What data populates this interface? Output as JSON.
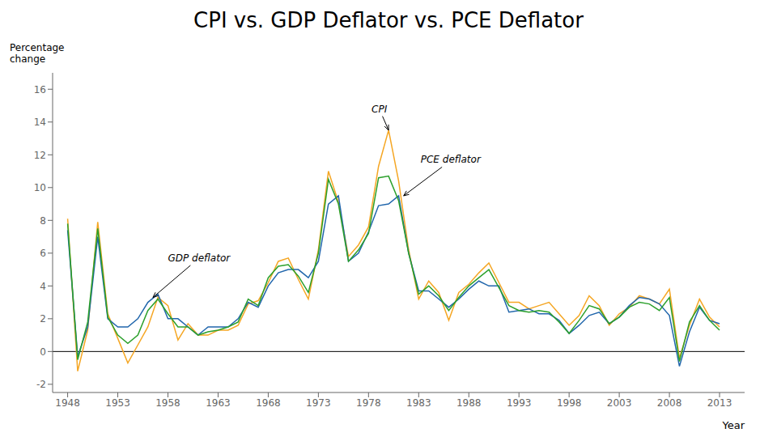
{
  "chart_data": {
    "type": "line",
    "title": "CPI vs. GDP Deflator vs. PCE Deflator",
    "ylabel": "Percentage\nchange",
    "xlabel": "Year",
    "xlim": [
      1946.5,
      2015.5
    ],
    "xticks": [
      1948,
      1953,
      1958,
      1963,
      1968,
      1973,
      1978,
      1983,
      1988,
      1993,
      1998,
      2003,
      2008,
      2013
    ],
    "ylim": [
      -2.5,
      17
    ],
    "yticks": [
      -2,
      0,
      2,
      4,
      6,
      8,
      10,
      12,
      14,
      16
    ],
    "grid": false,
    "hline": 0,
    "x": [
      1948,
      1949,
      1950,
      1951,
      1952,
      1953,
      1954,
      1955,
      1956,
      1957,
      1958,
      1959,
      1960,
      1961,
      1962,
      1963,
      1964,
      1965,
      1966,
      1967,
      1968,
      1969,
      1970,
      1971,
      1972,
      1973,
      1974,
      1975,
      1976,
      1977,
      1978,
      1979,
      1980,
      1981,
      1982,
      1983,
      1984,
      1985,
      1986,
      1987,
      1988,
      1989,
      1990,
      1991,
      1992,
      1993,
      1994,
      1995,
      1996,
      1997,
      1998,
      1999,
      2000,
      2001,
      2002,
      2003,
      2004,
      2005,
      2006,
      2007,
      2008,
      2009,
      2010,
      2011,
      2012,
      2013
    ],
    "series": [
      {
        "name": "CPI",
        "color": "#f5a623",
        "values": [
          8.1,
          -1.2,
          1.3,
          7.9,
          2.3,
          0.8,
          -0.7,
          0.4,
          1.5,
          3.3,
          2.8,
          0.7,
          1.7,
          1.0,
          1.0,
          1.3,
          1.3,
          1.6,
          2.9,
          3.1,
          4.2,
          5.5,
          5.7,
          4.4,
          3.2,
          6.2,
          11.0,
          9.1,
          5.8,
          6.5,
          7.6,
          11.3,
          13.5,
          10.4,
          6.2,
          3.2,
          4.3,
          3.6,
          1.9,
          3.6,
          4.1,
          4.8,
          5.4,
          4.2,
          3.0,
          3.0,
          2.6,
          2.8,
          3.0,
          2.3,
          1.6,
          2.2,
          3.4,
          2.8,
          1.6,
          2.3,
          2.7,
          3.4,
          3.2,
          2.9,
          3.8,
          -0.4,
          1.6,
          3.2,
          2.1,
          1.5
        ]
      },
      {
        "name": "GDP deflator",
        "color": "#2166ac",
        "values": [
          7.4,
          -0.3,
          1.5,
          7.0,
          2.0,
          1.5,
          1.5,
          2.0,
          3.0,
          3.5,
          2.0,
          2.0,
          1.5,
          1.0,
          1.5,
          1.5,
          1.5,
          2.0,
          3.0,
          2.7,
          4.0,
          4.8,
          5.0,
          5.0,
          4.5,
          5.5,
          9.0,
          9.5,
          5.5,
          6.0,
          7.3,
          8.9,
          9.0,
          9.5,
          6.0,
          3.7,
          3.7,
          3.2,
          2.7,
          3.2,
          3.8,
          4.3,
          4.0,
          4.0,
          2.4,
          2.5,
          2.6,
          2.3,
          2.3,
          1.9,
          1.1,
          1.6,
          2.2,
          2.4,
          1.7,
          2.1,
          2.8,
          3.3,
          3.2,
          2.9,
          2.2,
          -0.9,
          1.2,
          2.7,
          1.9,
          1.7
        ]
      },
      {
        "name": "PCE deflator",
        "color": "#2ca02c",
        "values": [
          7.8,
          -0.5,
          1.8,
          7.5,
          2.1,
          1.0,
          0.5,
          1.0,
          2.5,
          3.2,
          2.3,
          1.5,
          1.5,
          1.0,
          1.2,
          1.3,
          1.5,
          1.8,
          3.2,
          2.8,
          4.5,
          5.2,
          5.3,
          4.6,
          3.6,
          6.0,
          10.5,
          9.0,
          5.5,
          6.2,
          7.2,
          10.6,
          10.7,
          9.2,
          6.0,
          3.5,
          4.0,
          3.4,
          2.5,
          3.3,
          4.0,
          4.5,
          5.0,
          3.9,
          2.8,
          2.5,
          2.4,
          2.5,
          2.4,
          1.8,
          1.1,
          1.9,
          2.8,
          2.6,
          1.7,
          2.1,
          2.7,
          3.0,
          2.9,
          2.5,
          3.3,
          -0.6,
          1.8,
          2.8,
          1.9,
          1.3
        ]
      }
    ],
    "annotations": [
      {
        "text": "CPI",
        "x": 1980,
        "y": 13.5,
        "text_x": 1978.3,
        "text_y": 14.6
      },
      {
        "text": "PCE deflator",
        "x": 1981.5,
        "y": 9.5,
        "text_x": 1983.2,
        "text_y": 11.5
      },
      {
        "text": "GDP deflator",
        "x": 1956.5,
        "y": 3.3,
        "text_x": 1958.0,
        "text_y": 5.5
      }
    ]
  }
}
